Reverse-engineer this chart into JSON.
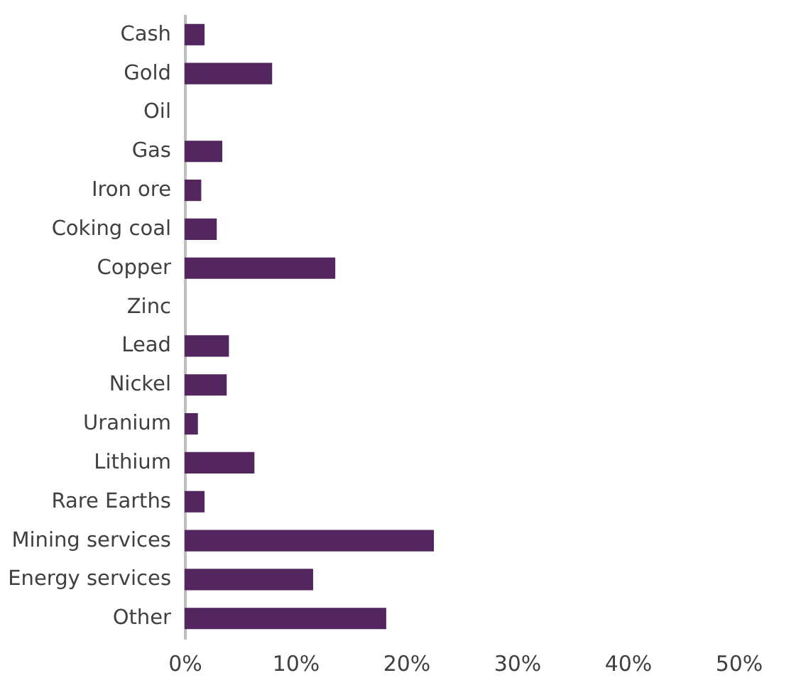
{
  "chart_data": {
    "type": "bar",
    "orientation": "horizontal",
    "categories": [
      "Cash",
      "Gold",
      "Oil",
      "Gas",
      "Iron ore",
      "Coking coal",
      "Copper",
      "Zinc",
      "Lead",
      "Nickel",
      "Uranium",
      "Lithium",
      "Rare Earths",
      "Mining services",
      "Energy services",
      "Other"
    ],
    "values": [
      1.8,
      7.9,
      0,
      3.4,
      1.5,
      2.9,
      13.6,
      0,
      4.0,
      3.8,
      1.2,
      6.3,
      1.8,
      22.5,
      11.6,
      18.2
    ],
    "color": "#54265f",
    "xlim": [
      0,
      50
    ],
    "xticks": [
      {
        "value": 0,
        "label": "0%"
      },
      {
        "value": 10,
        "label": "10%"
      },
      {
        "value": 20,
        "label": "20%"
      },
      {
        "value": 30,
        "label": "30%"
      },
      {
        "value": 40,
        "label": "40%"
      },
      {
        "value": 50,
        "label": "50%"
      }
    ],
    "grid": false
  }
}
